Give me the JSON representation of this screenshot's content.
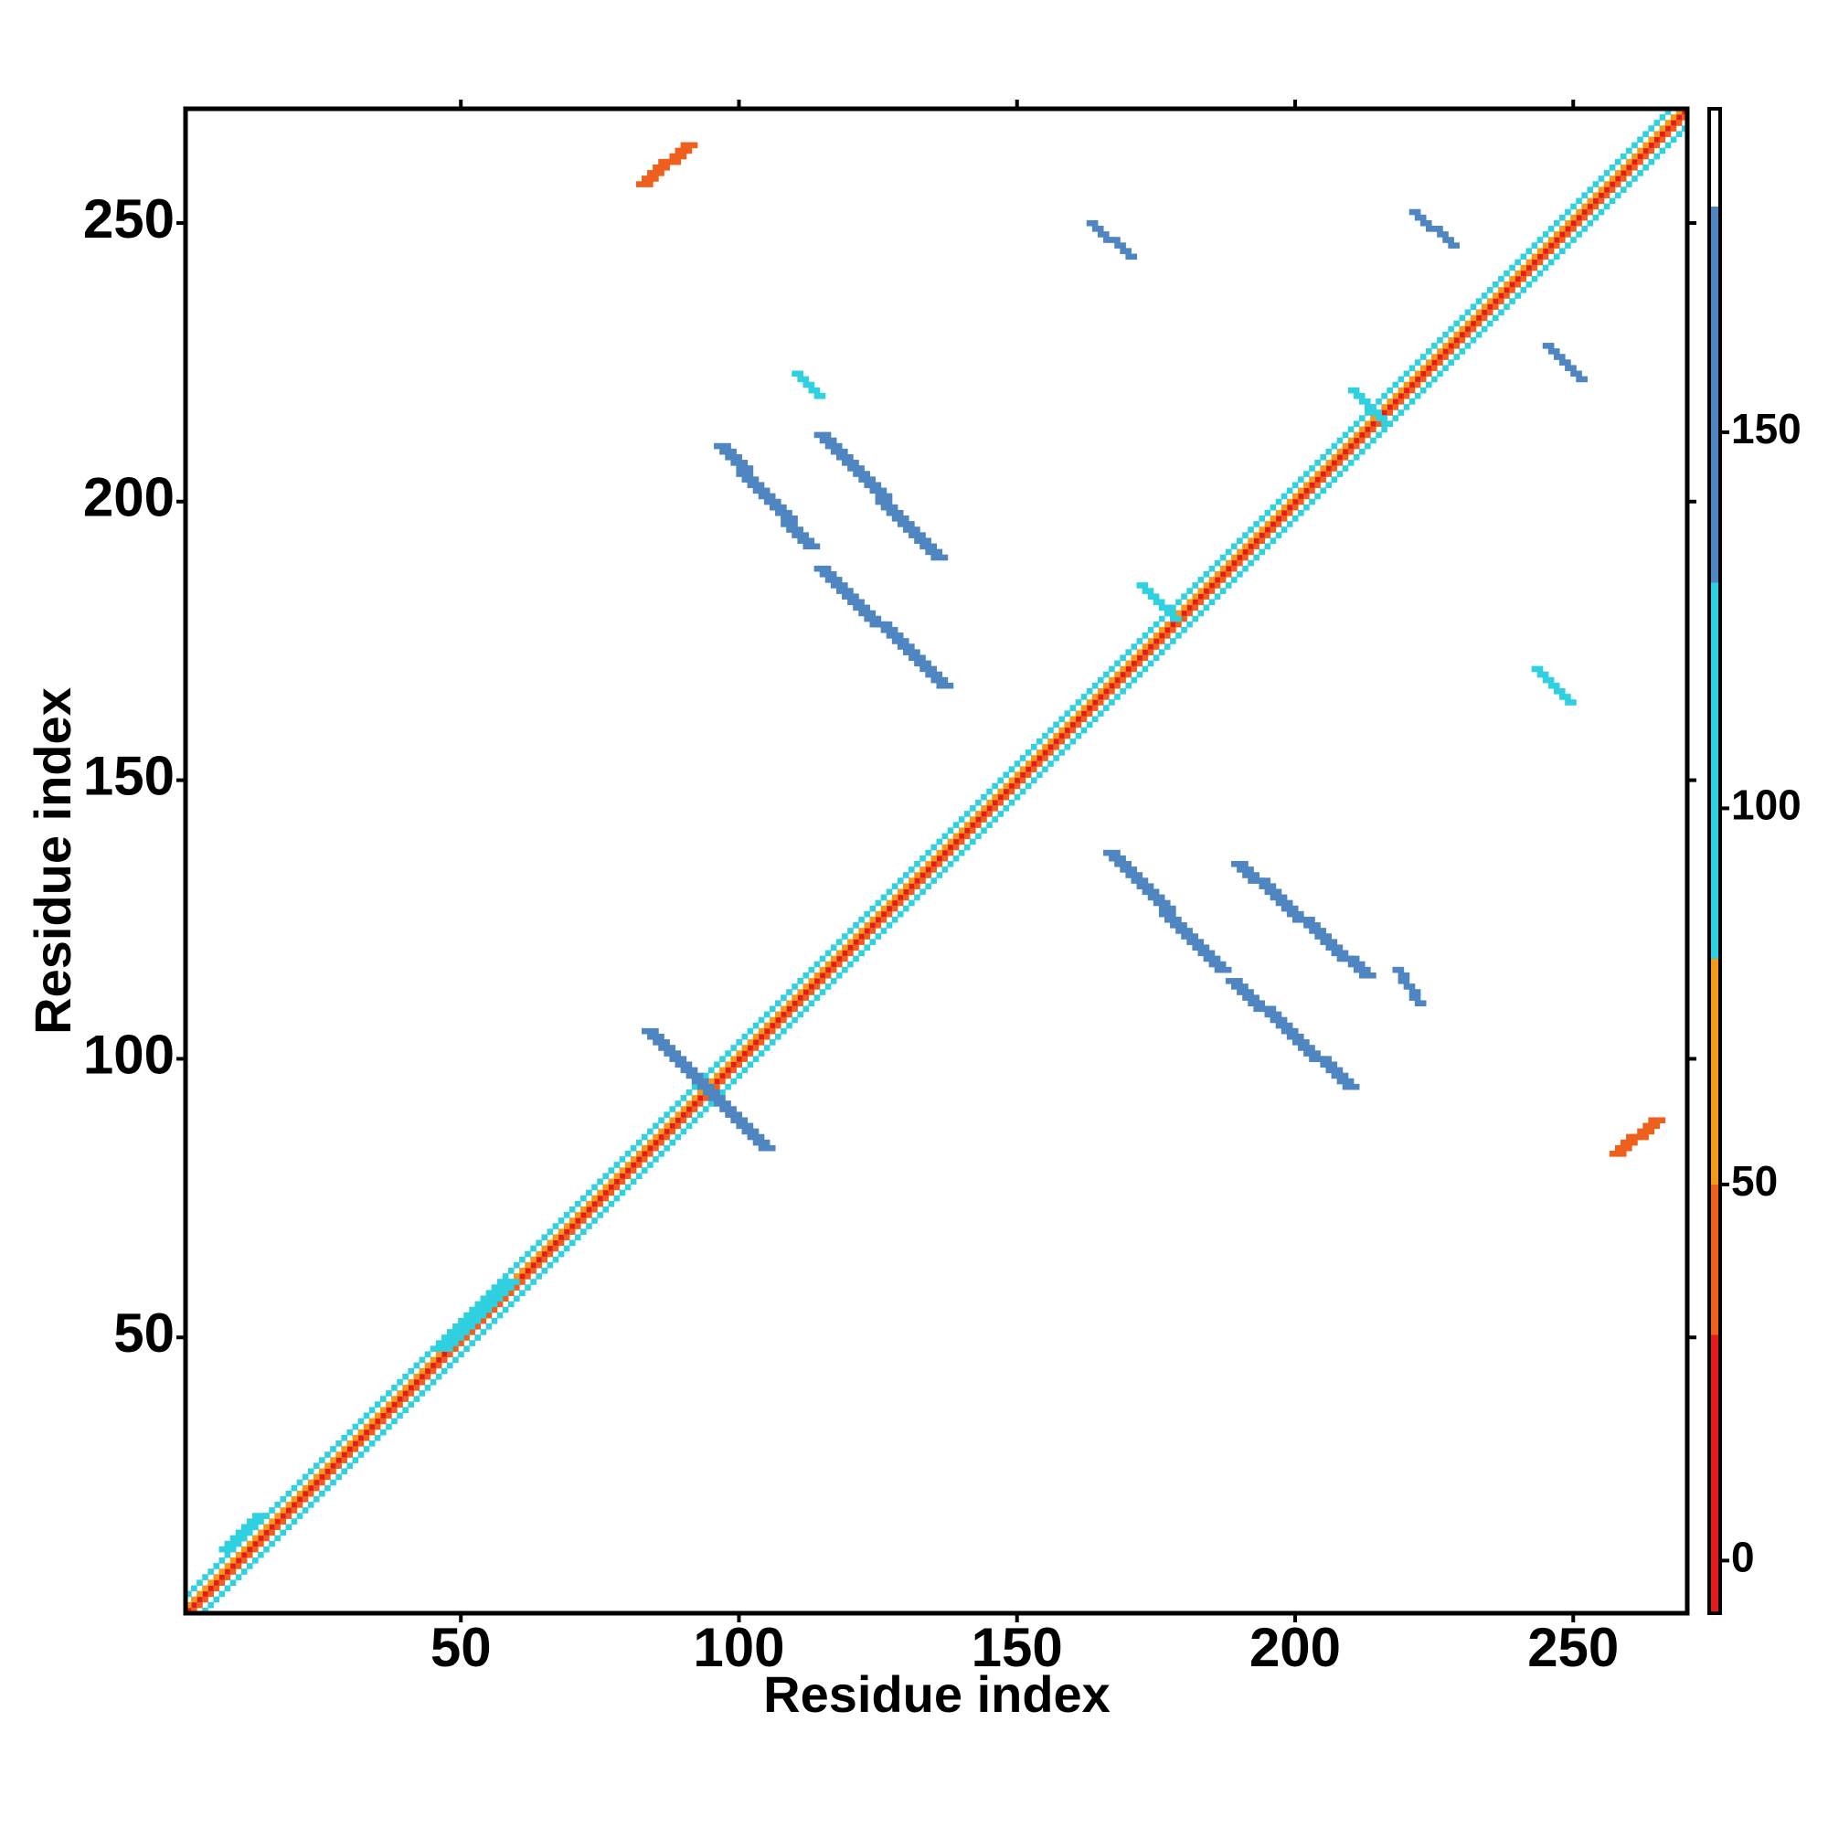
{
  "chart_data": {
    "type": "heatmap",
    "xlabel": "Residue index",
    "ylabel": "Residue index",
    "xlim": [
      0.5,
      270.5
    ],
    "ylim": [
      0.5,
      270.5
    ],
    "xticks": [
      50,
      100,
      150,
      200,
      250
    ],
    "yticks": [
      50,
      100,
      150,
      200,
      250
    ],
    "clim": [
      -7,
      193
    ],
    "cticks": [
      0,
      50,
      100,
      150
    ],
    "colorscale": [
      {
        "from": -7,
        "to": 30,
        "color": "#e41a1c"
      },
      {
        "from": 30,
        "to": 50,
        "color": "#ef5f1d"
      },
      {
        "from": 50,
        "to": 80,
        "color": "#f39a1a"
      },
      {
        "from": 80,
        "to": 130,
        "color": "#2fd0e0"
      },
      {
        "from": 130,
        "to": 180,
        "color": "#4f86c2"
      },
      {
        "from": 180,
        "to": 193,
        "color": "#ffffff"
      }
    ],
    "strips": [
      {
        "x": [
          1,
          270
        ],
        "y": [
          1,
          270
        ],
        "width": 1,
        "value": 10
      },
      {
        "x": [
          1,
          269
        ],
        "y": [
          2,
          270
        ],
        "width": 1,
        "value": 65
      },
      {
        "x": [
          2,
          270
        ],
        "y": [
          1,
          269
        ],
        "width": 1,
        "value": 40
      },
      {
        "x": [
          1,
          267
        ],
        "y": [
          4,
          270
        ],
        "width": 1,
        "value": 110
      },
      {
        "x": [
          4,
          270
        ],
        "y": [
          1,
          267
        ],
        "width": 1,
        "value": 110
      },
      {
        "x": [
          96,
          112
        ],
        "y": [
          210,
          192
        ],
        "width": 3,
        "value": 160
      },
      {
        "x": [
          114,
          135
        ],
        "y": [
          212,
          190
        ],
        "width": 3,
        "value": 160
      },
      {
        "x": [
          114,
          136
        ],
        "y": [
          188,
          167
        ],
        "width": 3,
        "value": 160
      },
      {
        "x": [
          83,
          104
        ],
        "y": [
          105,
          84
        ],
        "width": 3,
        "value": 160
      },
      {
        "x": [
          166,
          186
        ],
        "y": [
          137,
          116
        ],
        "width": 3,
        "value": 160
      },
      {
        "x": [
          188,
          209
        ],
        "y": [
          114,
          95
        ],
        "width": 3,
        "value": 160
      },
      {
        "x": [
          189,
          212
        ],
        "y": [
          135,
          115
        ],
        "width": 3,
        "value": 160
      },
      {
        "x": [
          110,
          114
        ],
        "y": [
          223,
          219
        ],
        "width": 2,
        "value": 110
      },
      {
        "x": [
          221,
          228
        ],
        "y": [
          252,
          246
        ],
        "width": 2,
        "value": 160
      },
      {
        "x": [
          163,
          170
        ],
        "y": [
          250,
          244
        ],
        "width": 2,
        "value": 160
      },
      {
        "x": [
          245,
          251
        ],
        "y": [
          228,
          222
        ],
        "width": 2,
        "value": 160
      },
      {
        "x": [
          243,
          249
        ],
        "y": [
          170,
          164
        ],
        "width": 2,
        "value": 110
      },
      {
        "x": [
          218,
          222
        ],
        "y": [
          116,
          110
        ],
        "width": 2,
        "value": 160
      },
      {
        "x": [
          82,
          90
        ],
        "y": [
          257,
          264
        ],
        "width": 3,
        "value": 40
      },
      {
        "x": [
          257,
          264
        ],
        "y": [
          83,
          89
        ],
        "width": 3,
        "value": 40
      },
      {
        "x": [
          7,
          13
        ],
        "y": [
          12,
          18
        ],
        "width": 3,
        "value": 110
      },
      {
        "x": [
          46,
          58
        ],
        "y": [
          48,
          60
        ],
        "width": 3,
        "value": 110
      },
      {
        "x": [
          172,
          178
        ],
        "y": [
          185,
          179
        ],
        "width": 2,
        "value": 110
      },
      {
        "x": [
          210,
          216
        ],
        "y": [
          220,
          214
        ],
        "width": 2,
        "value": 110
      }
    ]
  }
}
